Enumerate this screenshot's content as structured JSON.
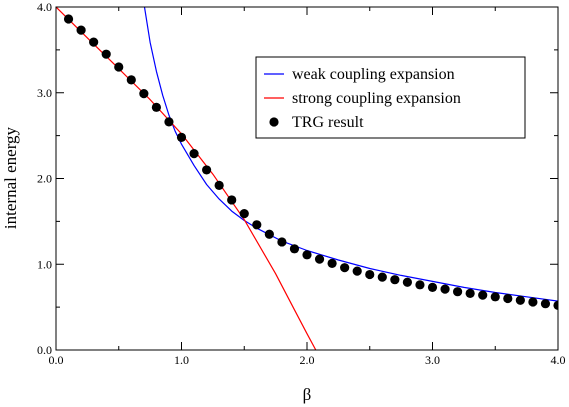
{
  "chart_data": {
    "type": "line",
    "xlabel": "β",
    "ylabel": "internal energy",
    "xlim": [
      0.0,
      4.0
    ],
    "ylim": [
      0.0,
      4.0
    ],
    "x_ticks": [
      0.0,
      1.0,
      2.0,
      3.0,
      4.0
    ],
    "y_ticks": [
      0.0,
      1.0,
      2.0,
      3.0,
      4.0
    ],
    "x_tick_labels": [
      "0.0",
      "1.0",
      "2.0",
      "3.0",
      "4.0"
    ],
    "y_tick_labels": [
      "0.0",
      "1.0",
      "2.0",
      "3.0",
      "4.0"
    ],
    "grid": false,
    "legend_position": "top-right",
    "series": [
      {
        "name": "weak coupling expansion",
        "kind": "line",
        "color": "#0000ff",
        "x": [
          0.7,
          0.75,
          0.8,
          0.85,
          0.9,
          0.95,
          1.0,
          1.1,
          1.2,
          1.3,
          1.4,
          1.5,
          1.6,
          1.8,
          2.0,
          2.25,
          2.5,
          2.75,
          3.0,
          3.25,
          3.5,
          3.75,
          4.0
        ],
        "y": [
          4.05,
          3.59,
          3.25,
          2.97,
          2.74,
          2.55,
          2.4,
          2.15,
          1.93,
          1.76,
          1.62,
          1.51,
          1.42,
          1.27,
          1.16,
          1.05,
          0.95,
          0.87,
          0.8,
          0.73,
          0.67,
          0.62,
          0.57
        ]
      },
      {
        "name": "strong coupling expansion",
        "kind": "line",
        "color": "#ff0000",
        "x": [
          0.0,
          0.25,
          0.5,
          0.75,
          1.0,
          1.25,
          1.5,
          1.75,
          1.9,
          2.0,
          2.07
        ],
        "y": [
          4.0,
          3.64,
          3.28,
          2.92,
          2.52,
          2.05,
          1.52,
          0.89,
          0.47,
          0.19,
          0.0
        ]
      },
      {
        "name": "TRG result",
        "kind": "scatter",
        "color": "#000000",
        "x": [
          0.1,
          0.2,
          0.3,
          0.4,
          0.5,
          0.6,
          0.7,
          0.8,
          0.9,
          1.0,
          1.1,
          1.2,
          1.3,
          1.4,
          1.5,
          1.6,
          1.7,
          1.8,
          1.9,
          2.0,
          2.1,
          2.2,
          2.3,
          2.4,
          2.5,
          2.6,
          2.7,
          2.8,
          2.9,
          3.0,
          3.1,
          3.2,
          3.3,
          3.4,
          3.5,
          3.6,
          3.7,
          3.8,
          3.9,
          4.0
        ],
        "y": [
          3.86,
          3.73,
          3.59,
          3.45,
          3.3,
          3.15,
          2.99,
          2.83,
          2.66,
          2.48,
          2.29,
          2.1,
          1.92,
          1.75,
          1.59,
          1.46,
          1.35,
          1.26,
          1.18,
          1.11,
          1.06,
          1.01,
          0.96,
          0.92,
          0.88,
          0.85,
          0.82,
          0.79,
          0.76,
          0.73,
          0.71,
          0.68,
          0.66,
          0.64,
          0.62,
          0.6,
          0.58,
          0.56,
          0.54,
          0.52
        ]
      }
    ]
  }
}
